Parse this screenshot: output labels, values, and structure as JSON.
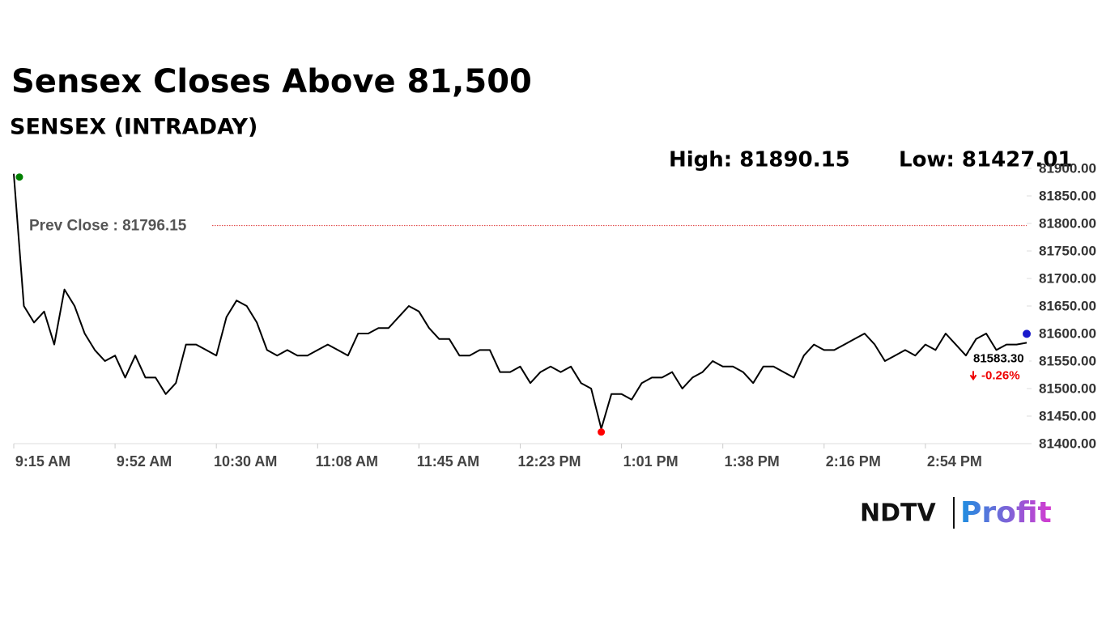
{
  "chart_data": {
    "type": "line",
    "title": "Sensex Closes Above 81,500",
    "subtitle": "SENSEX (INTRADAY)",
    "high": {
      "value": 81890.15,
      "label": "High: 81890.15"
    },
    "low": {
      "value": 81427.01,
      "label": "Low: 81427.01"
    },
    "prev_close": {
      "value": 81796.15,
      "label": "Prev Close : 81796.15"
    },
    "last": {
      "value": 81583.3,
      "label": "81583.30"
    },
    "change": {
      "value": -0.26,
      "label": "-0.26%"
    },
    "categories": [
      "9:15 AM",
      null,
      null,
      null,
      null,
      null,
      null,
      null,
      null,
      null,
      "9:52 AM",
      null,
      null,
      null,
      null,
      null,
      null,
      null,
      null,
      null,
      "10:30 AM",
      null,
      null,
      null,
      null,
      null,
      null,
      null,
      null,
      null,
      "11:08 AM",
      null,
      null,
      null,
      null,
      null,
      null,
      null,
      null,
      null,
      "11:45 AM",
      null,
      null,
      null,
      null,
      null,
      null,
      null,
      null,
      null,
      "12:23 PM",
      null,
      null,
      null,
      null,
      null,
      null,
      null,
      null,
      null,
      "1:01 PM",
      null,
      null,
      null,
      null,
      null,
      null,
      null,
      null,
      null,
      "1:38 PM",
      null,
      null,
      null,
      null,
      null,
      null,
      null,
      null,
      null,
      "2:16 PM",
      null,
      null,
      null,
      null,
      null,
      null,
      null,
      null,
      null,
      "2:54 PM",
      null,
      null,
      null,
      null,
      null,
      null,
      null,
      null,
      null,
      null
    ],
    "series": [
      {
        "name": "SENSEX",
        "color": "#000000",
        "values": [
          81890.15,
          81650,
          81620,
          81640,
          81580,
          81680,
          81650,
          81600,
          81570,
          81550,
          81560,
          81520,
          81560,
          81520,
          81520,
          81490,
          81510,
          81580,
          81580,
          81570,
          81560,
          81630,
          81660,
          81650,
          81620,
          81570,
          81560,
          81570,
          81560,
          81560,
          81570,
          81580,
          81570,
          81560,
          81600,
          81600,
          81610,
          81610,
          81630,
          81650,
          81640,
          81610,
          81590,
          81590,
          81560,
          81560,
          81570,
          81570,
          81530,
          81530,
          81540,
          81510,
          81530,
          81540,
          81530,
          81540,
          81510,
          81500,
          81427.01,
          81490,
          81490,
          81480,
          81510,
          81520,
          81520,
          81530,
          81500,
          81520,
          81530,
          81550,
          81540,
          81540,
          81530,
          81510,
          81540,
          81540,
          81530,
          81520,
          81560,
          81580,
          81570,
          81570,
          81580,
          81590,
          81600,
          81580,
          81550,
          81560,
          81570,
          81560,
          81580,
          81570,
          81600,
          81580,
          81560,
          81590,
          81600,
          81570,
          81580,
          81580,
          81583.3
        ]
      }
    ],
    "ylim": [
      81400,
      81900
    ],
    "yticks": [
      {
        "value": 81400,
        "label": "81400.00"
      },
      {
        "value": 81450,
        "label": "81450.00"
      },
      {
        "value": 81500,
        "label": "81500.00"
      },
      {
        "value": 81550,
        "label": "81550.00"
      },
      {
        "value": 81600,
        "label": "81600.00"
      },
      {
        "value": 81650,
        "label": "81650.00"
      },
      {
        "value": 81700,
        "label": "81700.00"
      },
      {
        "value": 81750,
        "label": "81750.00"
      },
      {
        "value": 81800,
        "label": "81800.00"
      },
      {
        "value": 81850,
        "label": "81850.00"
      },
      {
        "value": 81900,
        "label": "81900.00"
      }
    ],
    "grid": false,
    "logo": {
      "brand": "NDTV",
      "product": "Profit"
    }
  }
}
